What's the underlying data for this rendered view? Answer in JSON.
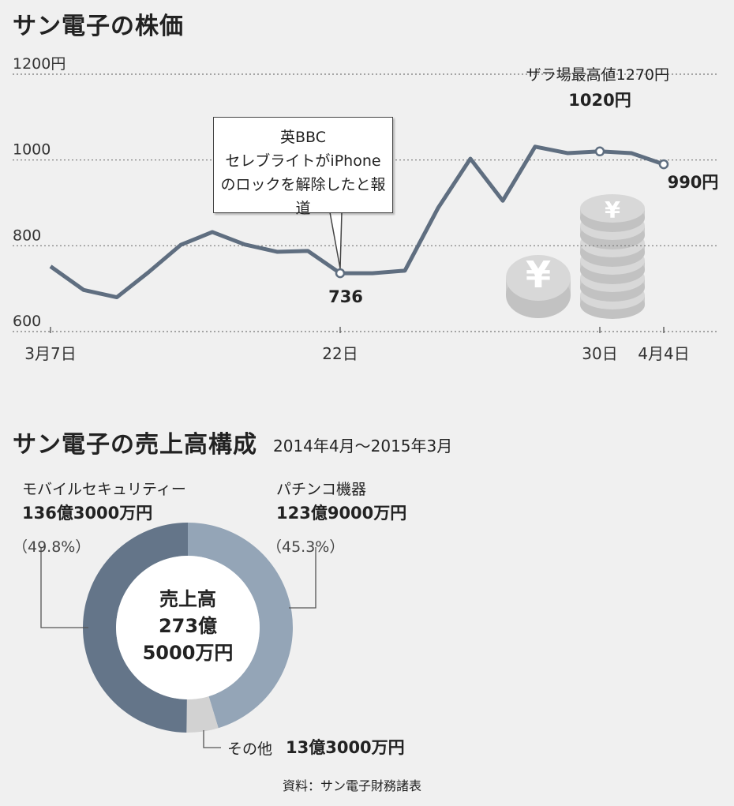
{
  "stock_title": "サン電子の株価",
  "sales_title": "サン電子の売上高構成",
  "sales_period": "2014年4月～2015年3月",
  "source": "資料：サン電子財務諸表",
  "colors": {
    "line": "#5f6e80",
    "security": "#647589",
    "pachinko": "#94a5b7",
    "other": "#d2d2d2",
    "coin": "#cdcdcd"
  },
  "chart_data": [
    {
      "type": "line",
      "title": "サン電子の株価",
      "y_tick_labels": [
        "1200円",
        "1000",
        "800",
        "600"
      ],
      "y_ticks": [
        1200,
        1000,
        800,
        600
      ],
      "ylim": [
        600,
        1250
      ],
      "x_tick_labels": [
        "3月7日",
        "22日",
        "30日",
        "4月4日"
      ],
      "x_tick_index": [
        0,
        9,
        17,
        19
      ],
      "values": [
        752,
        697,
        680,
        738,
        802,
        832,
        803,
        786,
        788,
        736,
        736,
        742,
        888,
        1003,
        905,
        1031,
        1016,
        1020,
        1016,
        990
      ],
      "grid": true,
      "annotations": {
        "record_high": "ザラ場最高値1270円",
        "peak_label": "1020円",
        "low_label": "736",
        "end_label": "990円",
        "callout": [
          "英BBC",
          "セレブライトがiPhone",
          "のロックを解除したと報道"
        ]
      }
    },
    {
      "type": "pie",
      "title": "サン電子の売上高構成",
      "center_label": [
        "売上高",
        "273億",
        "5000万円"
      ],
      "slices": [
        {
          "name": "モバイルセキュリティー",
          "amount": "136億3000万円",
          "percent_label": "（49.8%）",
          "value": 49.8
        },
        {
          "name": "パチンコ機器",
          "amount": "123億9000万円",
          "percent_label": "（45.3%）",
          "value": 45.3
        },
        {
          "name": "その他",
          "amount": "13億3000万円",
          "value": 4.9
        }
      ]
    }
  ]
}
